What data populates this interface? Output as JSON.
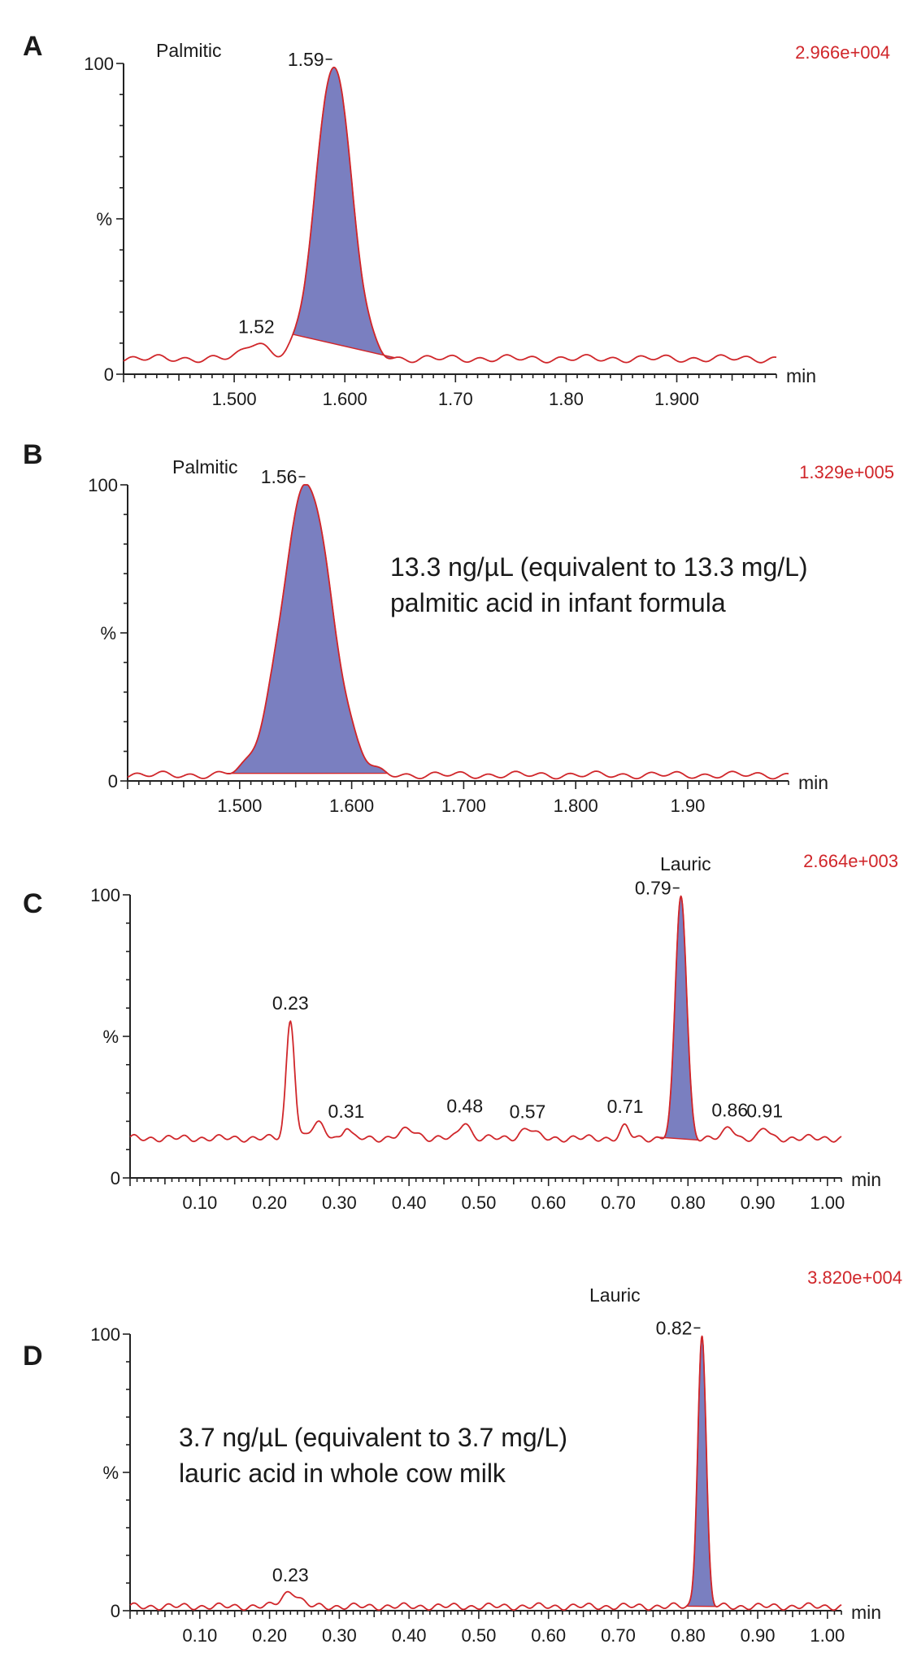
{
  "chart_data": [
    {
      "type": "line",
      "panel_label": "A",
      "compound_label": "Palmitic",
      "scale_factor": "2.966e+004",
      "xlabel": "min",
      "ylabel": "%",
      "y_ticks": [
        "0",
        "100"
      ],
      "y_mid_label": "%",
      "xlim": [
        1.4,
        1.99
      ],
      "ylim": [
        0,
        100
      ],
      "x_tick_labels": [
        {
          "v": 1.5,
          "t": "1.500"
        },
        {
          "v": 1.6,
          "t": "1.600"
        },
        {
          "v": 1.7,
          "t": "1.70"
        },
        {
          "v": 1.8,
          "t": "1.80"
        },
        {
          "v": 1.9,
          "t": "1.900"
        }
      ],
      "baseline": 5,
      "peaks": [
        {
          "rt": 1.52,
          "h": 10.5,
          "w": 0.01,
          "label": "1.52"
        },
        {
          "rt": 1.59,
          "h": 100,
          "w": 0.016,
          "label": "1.59",
          "filled": true,
          "fill_from": 1.553,
          "fill_to": 1.645
        }
      ],
      "annotation": []
    },
    {
      "type": "line",
      "panel_label": "B",
      "compound_label": "Palmitic",
      "scale_factor": "1.329e+005",
      "xlabel": "min",
      "ylabel": "%",
      "y_ticks": [
        "0",
        "100"
      ],
      "y_mid_label": "%",
      "xlim": [
        1.4,
        1.99
      ],
      "ylim": [
        0,
        100
      ],
      "x_tick_labels": [
        {
          "v": 1.5,
          "t": "1.500"
        },
        {
          "v": 1.6,
          "t": "1.600"
        },
        {
          "v": 1.7,
          "t": "1.700"
        },
        {
          "v": 1.8,
          "t": "1.800"
        },
        {
          "v": 1.9,
          "t": "1.90"
        }
      ],
      "baseline": 2,
      "peaks": [
        {
          "rt": 1.56,
          "h": 100,
          "w": 0.022,
          "label": "1.56",
          "filled": true,
          "fill_from": 1.488,
          "fill_to": 1.632
        }
      ],
      "annotation": [
        "13.3 ng/µL (equivalent to 13.3 mg/L)",
        "palmitic acid in infant formula"
      ]
    },
    {
      "type": "line",
      "panel_label": "C",
      "compound_label": "Lauric",
      "scale_factor": "2.664e+003",
      "xlabel": "min",
      "ylabel": "%",
      "y_ticks": [
        "0",
        "100"
      ],
      "y_mid_label": "%",
      "xlim": [
        0.0,
        1.02
      ],
      "ylim": [
        0,
        100
      ],
      "x_tick_labels": [
        {
          "v": 0.1,
          "t": "0.10"
        },
        {
          "v": 0.2,
          "t": "0.20"
        },
        {
          "v": 0.3,
          "t": "0.30"
        },
        {
          "v": 0.4,
          "t": "0.40"
        },
        {
          "v": 0.5,
          "t": "0.50"
        },
        {
          "v": 0.6,
          "t": "0.60"
        },
        {
          "v": 0.7,
          "t": "0.70"
        },
        {
          "v": 0.8,
          "t": "0.80"
        },
        {
          "v": 0.9,
          "t": "0.90"
        },
        {
          "v": 1.0,
          "t": "1.00"
        }
      ],
      "baseline": 14,
      "peaks": [
        {
          "rt": 0.23,
          "h": 56,
          "w": 0.006,
          "label": "0.23"
        },
        {
          "rt": 0.27,
          "h": 19,
          "w": 0.01,
          "label": ""
        },
        {
          "rt": 0.31,
          "h": 18,
          "w": 0.005,
          "label": "0.31"
        },
        {
          "rt": 0.4,
          "h": 17,
          "w": 0.012,
          "label": ""
        },
        {
          "rt": 0.48,
          "h": 20,
          "w": 0.007,
          "label": "0.48"
        },
        {
          "rt": 0.57,
          "h": 17.5,
          "w": 0.01,
          "label": "0.57"
        },
        {
          "rt": 0.71,
          "h": 18,
          "w": 0.006,
          "label": "0.71"
        },
        {
          "rt": 0.79,
          "h": 100,
          "w": 0.008,
          "label": "0.79",
          "filled": true,
          "fill_from": 0.755,
          "fill_to": 0.815
        },
        {
          "rt": 0.86,
          "h": 18,
          "w": 0.007,
          "label": "0.86"
        },
        {
          "rt": 0.91,
          "h": 17.5,
          "w": 0.006,
          "label": "0.91"
        }
      ],
      "annotation": []
    },
    {
      "type": "line",
      "panel_label": "D",
      "compound_label": "Lauric",
      "scale_factor": "3.820e+004",
      "xlabel": "min",
      "ylabel": "%",
      "y_ticks": [
        "0",
        "100"
      ],
      "y_mid_label": "%",
      "xlim": [
        0.0,
        1.02
      ],
      "ylim": [
        0,
        100
      ],
      "x_tick_labels": [
        {
          "v": 0.1,
          "t": "0.10"
        },
        {
          "v": 0.2,
          "t": "0.20"
        },
        {
          "v": 0.3,
          "t": "0.30"
        },
        {
          "v": 0.4,
          "t": "0.40"
        },
        {
          "v": 0.5,
          "t": "0.50"
        },
        {
          "v": 0.6,
          "t": "0.60"
        },
        {
          "v": 0.7,
          "t": "0.70"
        },
        {
          "v": 0.8,
          "t": "0.80"
        },
        {
          "v": 0.9,
          "t": "0.90"
        },
        {
          "v": 1.0,
          "t": "1.00"
        }
      ],
      "baseline": 1.5,
      "peaks": [
        {
          "rt": 0.23,
          "h": 7,
          "w": 0.012,
          "label": "0.23"
        },
        {
          "rt": 0.82,
          "h": 100,
          "w": 0.006,
          "label": "0.82",
          "filled": true,
          "fill_from": 0.798,
          "fill_to": 0.84
        }
      ],
      "annotation": [
        "3.7 ng/µL (equivalent to 3.7 mg/L)",
        "lauric acid in whole cow milk"
      ]
    }
  ]
}
